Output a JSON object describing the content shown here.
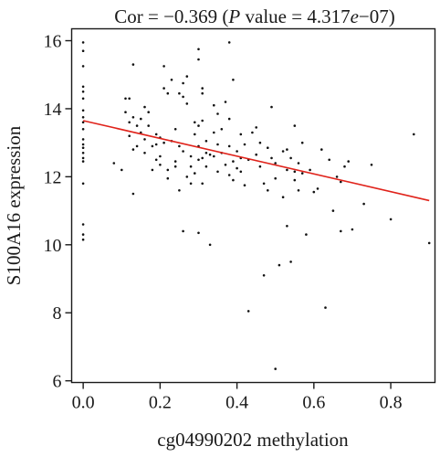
{
  "chart_data": {
    "type": "scatter",
    "title_prefix": "Cor = −0.369 (",
    "title_p": "P",
    "title_suffix": " value = 4.317",
    "title_e": "e",
    "title_exp": "−07)",
    "xlabel": "cg04990202 methylation",
    "ylabel": "S100A16 expression",
    "xlim": [
      -0.03,
      0.915
    ],
    "ylim": [
      5.95,
      16.35
    ],
    "xticks": [
      0.0,
      0.2,
      0.4,
      0.6,
      0.8
    ],
    "xtick_labels": [
      "0.0",
      "0.2",
      "0.4",
      "0.6",
      "0.8"
    ],
    "yticks": [
      6,
      8,
      10,
      12,
      14,
      16
    ],
    "ytick_labels": [
      "6",
      "8",
      "10",
      "12",
      "14",
      "16"
    ],
    "grid": false,
    "regression_line": {
      "x": [
        0.0,
        0.9
      ],
      "y": [
        13.65,
        11.3
      ],
      "color": "#e0231b"
    },
    "point_color": "#111111",
    "points": [
      [
        0.0,
        15.95
      ],
      [
        0.0,
        15.7
      ],
      [
        0.0,
        15.25
      ],
      [
        0.0,
        14.65
      ],
      [
        0.0,
        14.5
      ],
      [
        0.0,
        14.3
      ],
      [
        0.0,
        13.95
      ],
      [
        0.0,
        13.75
      ],
      [
        0.0,
        13.6
      ],
      [
        0.0,
        13.4
      ],
      [
        0.0,
        13.1
      ],
      [
        0.0,
        12.95
      ],
      [
        0.0,
        12.85
      ],
      [
        0.0,
        12.7
      ],
      [
        0.0,
        12.55
      ],
      [
        0.0,
        12.45
      ],
      [
        0.0,
        11.8
      ],
      [
        0.0,
        10.6
      ],
      [
        0.0,
        10.3
      ],
      [
        0.0,
        10.15
      ],
      [
        0.08,
        12.4
      ],
      [
        0.1,
        12.2
      ],
      [
        0.11,
        14.3
      ],
      [
        0.11,
        13.9
      ],
      [
        0.12,
        14.3
      ],
      [
        0.12,
        13.6
      ],
      [
        0.12,
        13.2
      ],
      [
        0.13,
        15.3
      ],
      [
        0.13,
        13.75
      ],
      [
        0.13,
        12.8
      ],
      [
        0.13,
        11.5
      ],
      [
        0.14,
        13.5
      ],
      [
        0.14,
        12.9
      ],
      [
        0.15,
        13.7
      ],
      [
        0.15,
        13.3
      ],
      [
        0.16,
        14.05
      ],
      [
        0.16,
        13.1
      ],
      [
        0.16,
        12.7
      ],
      [
        0.17,
        13.9
      ],
      [
        0.17,
        13.5
      ],
      [
        0.18,
        12.9
      ],
      [
        0.18,
        12.2
      ],
      [
        0.19,
        13.25
      ],
      [
        0.19,
        12.95
      ],
      [
        0.19,
        12.5
      ],
      [
        0.2,
        13.15
      ],
      [
        0.2,
        12.6
      ],
      [
        0.2,
        12.35
      ],
      [
        0.21,
        15.25
      ],
      [
        0.21,
        14.6
      ],
      [
        0.21,
        13.0
      ],
      [
        0.22,
        14.45
      ],
      [
        0.22,
        12.2
      ],
      [
        0.22,
        11.95
      ],
      [
        0.23,
        14.85
      ],
      [
        0.23,
        13.05
      ],
      [
        0.24,
        13.4
      ],
      [
        0.24,
        12.45
      ],
      [
        0.24,
        12.3
      ],
      [
        0.25,
        14.45
      ],
      [
        0.25,
        12.9
      ],
      [
        0.25,
        11.6
      ],
      [
        0.26,
        14.35
      ],
      [
        0.26,
        14.75
      ],
      [
        0.26,
        12.75
      ],
      [
        0.26,
        10.4
      ],
      [
        0.27,
        14.95
      ],
      [
        0.27,
        14.15
      ],
      [
        0.27,
        12.0
      ],
      [
        0.28,
        12.6
      ],
      [
        0.28,
        12.3
      ],
      [
        0.28,
        11.8
      ],
      [
        0.29,
        13.6
      ],
      [
        0.29,
        13.25
      ],
      [
        0.29,
        12.1
      ],
      [
        0.3,
        15.75
      ],
      [
        0.3,
        15.45
      ],
      [
        0.3,
        13.5
      ],
      [
        0.3,
        12.9
      ],
      [
        0.3,
        12.5
      ],
      [
        0.3,
        10.35
      ],
      [
        0.31,
        14.6
      ],
      [
        0.31,
        14.45
      ],
      [
        0.31,
        13.65
      ],
      [
        0.31,
        12.55
      ],
      [
        0.31,
        11.8
      ],
      [
        0.32,
        13.05
      ],
      [
        0.32,
        12.7
      ],
      [
        0.32,
        12.3
      ],
      [
        0.33,
        12.65
      ],
      [
        0.33,
        10.0
      ],
      [
        0.34,
        14.1
      ],
      [
        0.34,
        13.3
      ],
      [
        0.34,
        12.6
      ],
      [
        0.35,
        13.85
      ],
      [
        0.35,
        12.95
      ],
      [
        0.35,
        12.15
      ],
      [
        0.36,
        13.4
      ],
      [
        0.36,
        12.7
      ],
      [
        0.37,
        14.2
      ],
      [
        0.37,
        12.35
      ],
      [
        0.38,
        15.95
      ],
      [
        0.38,
        13.7
      ],
      [
        0.38,
        12.9
      ],
      [
        0.38,
        12.05
      ],
      [
        0.39,
        14.85
      ],
      [
        0.39,
        12.45
      ],
      [
        0.39,
        11.9
      ],
      [
        0.4,
        12.75
      ],
      [
        0.4,
        12.25
      ],
      [
        0.41,
        13.25
      ],
      [
        0.41,
        12.55
      ],
      [
        0.41,
        12.15
      ],
      [
        0.42,
        12.95
      ],
      [
        0.42,
        11.75
      ],
      [
        0.43,
        8.05
      ],
      [
        0.43,
        12.5
      ],
      [
        0.44,
        13.3
      ],
      [
        0.45,
        13.45
      ],
      [
        0.45,
        12.65
      ],
      [
        0.46,
        13.0
      ],
      [
        0.46,
        12.3
      ],
      [
        0.47,
        11.8
      ],
      [
        0.47,
        9.1
      ],
      [
        0.48,
        12.85
      ],
      [
        0.48,
        11.6
      ],
      [
        0.49,
        14.05
      ],
      [
        0.49,
        12.55
      ],
      [
        0.5,
        6.35
      ],
      [
        0.5,
        12.4
      ],
      [
        0.5,
        11.95
      ],
      [
        0.51,
        9.4
      ],
      [
        0.52,
        12.75
      ],
      [
        0.52,
        11.4
      ],
      [
        0.53,
        12.2
      ],
      [
        0.53,
        10.55
      ],
      [
        0.53,
        12.8
      ],
      [
        0.54,
        12.55
      ],
      [
        0.54,
        9.5
      ],
      [
        0.55,
        13.5
      ],
      [
        0.55,
        11.9
      ],
      [
        0.55,
        12.15
      ],
      [
        0.56,
        12.4
      ],
      [
        0.56,
        11.6
      ],
      [
        0.57,
        13.0
      ],
      [
        0.57,
        12.1
      ],
      [
        0.58,
        10.3
      ],
      [
        0.59,
        12.2
      ],
      [
        0.6,
        11.55
      ],
      [
        0.61,
        11.65
      ],
      [
        0.62,
        12.8
      ],
      [
        0.63,
        8.15
      ],
      [
        0.64,
        12.5
      ],
      [
        0.65,
        11.0
      ],
      [
        0.66,
        12.0
      ],
      [
        0.67,
        11.85
      ],
      [
        0.67,
        10.4
      ],
      [
        0.68,
        12.3
      ],
      [
        0.69,
        12.45
      ],
      [
        0.7,
        10.45
      ],
      [
        0.73,
        11.2
      ],
      [
        0.75,
        12.35
      ],
      [
        0.8,
        10.75
      ],
      [
        0.86,
        13.25
      ],
      [
        0.9,
        10.05
      ]
    ]
  }
}
